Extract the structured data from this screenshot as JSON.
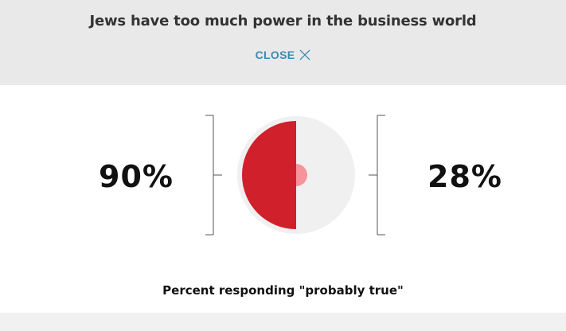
{
  "header": {
    "title": "Jews have too much power in the business world",
    "close_label": "CLOSE"
  },
  "comparison": {
    "left_value": "90%",
    "right_value": "28%",
    "caption": "Percent responding \"probably true\""
  },
  "colors": {
    "left_fill": "#d0202b",
    "right_fill": "#f7939b",
    "circle_bg": "#f0f0f0",
    "accent": "#3d8bb0"
  },
  "icons": {
    "close": "close-x-icon"
  }
}
